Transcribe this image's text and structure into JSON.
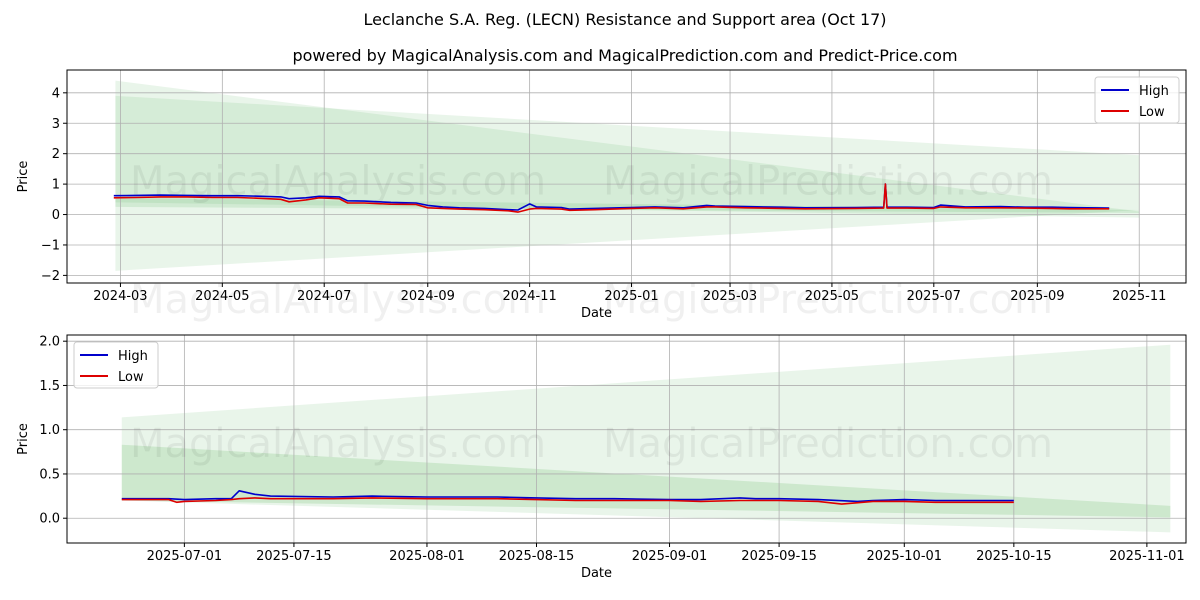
{
  "title": "Leclanche S.A. Reg. (LECN) Resistance and Support area (Oct 17)",
  "subtitle": "powered by MagicalAnalysis.com and MagicalPrediction.com and Predict-Price.com",
  "watermarks": [
    "MagicalAnalysis.com",
    "MagicalPrediction.com"
  ],
  "colors": {
    "high": "#0000cc",
    "low": "#dd0000",
    "band_fill": "#4caf50",
    "grid": "#b0b0b0"
  },
  "chart_data": [
    {
      "type": "line",
      "xlabel": "Date",
      "ylabel": "Price",
      "xlim": [
        "2024-01-29",
        "2025-11-29"
      ],
      "ylim": [
        -2.25,
        4.75
      ],
      "x_ticks": [
        "2024-03",
        "2024-05",
        "2024-07",
        "2024-09",
        "2024-11",
        "2025-01",
        "2025-03",
        "2025-05",
        "2025-07",
        "2025-09",
        "2025-11"
      ],
      "y_ticks": [
        -2,
        -1,
        0,
        1,
        2,
        3,
        4
      ],
      "y_tick_labels": [
        "−2",
        "−1",
        "0",
        "1",
        "2",
        "3",
        "4"
      ],
      "legend": {
        "position": "top-right",
        "entries": [
          "High",
          "Low"
        ]
      },
      "bands": [
        {
          "x": [
            "2024-02-27",
            "2025-11-01"
          ],
          "top": [
            4.4,
            0.1
          ],
          "bottom": [
            0.4,
            -0.1
          ],
          "opacity": 0.12
        },
        {
          "x": [
            "2024-02-27",
            "2025-11-01"
          ],
          "top": [
            3.9,
            1.95
          ],
          "bottom": [
            -1.85,
            0.15
          ],
          "opacity": 0.12
        },
        {
          "x": [
            "2024-02-27",
            "2025-11-01"
          ],
          "top": [
            0.55,
            0.15
          ],
          "bottom": [
            0.25,
            0.05
          ],
          "opacity": 0.15
        }
      ],
      "series": [
        {
          "name": "High",
          "x": [
            "2024-02-26",
            "2024-03-10",
            "2024-03-25",
            "2024-04-10",
            "2024-04-25",
            "2024-05-10",
            "2024-05-25",
            "2024-06-05",
            "2024-06-10",
            "2024-06-20",
            "2024-06-28",
            "2024-07-10",
            "2024-07-15",
            "2024-07-25",
            "2024-08-10",
            "2024-08-25",
            "2024-09-01",
            "2024-09-10",
            "2024-09-20",
            "2024-10-05",
            "2024-10-20",
            "2024-10-25",
            "2024-11-01",
            "2024-11-05",
            "2024-11-20",
            "2024-11-25",
            "2024-12-10",
            "2024-12-25",
            "2025-01-15",
            "2025-02-01",
            "2025-02-15",
            "2025-02-20",
            "2025-03-10",
            "2025-04-01",
            "2025-04-15",
            "2025-05-15",
            "2025-06-01",
            "2025-06-02",
            "2025-06-03",
            "2025-06-15",
            "2025-07-01",
            "2025-07-05",
            "2025-07-20",
            "2025-08-10",
            "2025-08-25",
            "2025-09-10",
            "2025-09-20",
            "2025-10-01",
            "2025-10-14"
          ],
          "values": [
            0.62,
            0.63,
            0.64,
            0.63,
            0.62,
            0.62,
            0.6,
            0.58,
            0.52,
            0.55,
            0.6,
            0.58,
            0.45,
            0.44,
            0.4,
            0.38,
            0.3,
            0.25,
            0.22,
            0.2,
            0.16,
            0.15,
            0.35,
            0.25,
            0.23,
            0.18,
            0.2,
            0.22,
            0.25,
            0.22,
            0.3,
            0.28,
            0.26,
            0.24,
            0.22,
            0.23,
            0.24,
            1.0,
            0.24,
            0.24,
            0.23,
            0.31,
            0.25,
            0.26,
            0.24,
            0.24,
            0.23,
            0.22,
            0.21
          ]
        },
        {
          "name": "Low",
          "x": [
            "2024-02-26",
            "2024-03-10",
            "2024-03-25",
            "2024-04-10",
            "2024-04-25",
            "2024-05-10",
            "2024-05-25",
            "2024-06-05",
            "2024-06-10",
            "2024-06-20",
            "2024-06-28",
            "2024-07-10",
            "2024-07-15",
            "2024-07-25",
            "2024-08-10",
            "2024-08-25",
            "2024-09-01",
            "2024-09-10",
            "2024-09-20",
            "2024-10-05",
            "2024-10-20",
            "2024-10-25",
            "2024-11-01",
            "2024-11-05",
            "2024-11-20",
            "2024-11-25",
            "2024-12-10",
            "2024-12-25",
            "2025-01-15",
            "2025-02-01",
            "2025-02-15",
            "2025-02-20",
            "2025-03-10",
            "2025-04-01",
            "2025-04-15",
            "2025-05-15",
            "2025-06-01",
            "2025-06-02",
            "2025-06-03",
            "2025-06-15",
            "2025-07-01",
            "2025-07-05",
            "2025-07-20",
            "2025-08-10",
            "2025-08-25",
            "2025-09-10",
            "2025-09-20",
            "2025-10-01",
            "2025-10-14"
          ],
          "values": [
            0.55,
            0.56,
            0.58,
            0.58,
            0.56,
            0.56,
            0.53,
            0.5,
            0.42,
            0.48,
            0.55,
            0.52,
            0.38,
            0.38,
            0.34,
            0.33,
            0.22,
            0.2,
            0.18,
            0.16,
            0.12,
            0.08,
            0.18,
            0.2,
            0.18,
            0.14,
            0.16,
            0.19,
            0.22,
            0.19,
            0.25,
            0.25,
            0.22,
            0.2,
            0.19,
            0.2,
            0.21,
            1.0,
            0.21,
            0.21,
            0.2,
            0.25,
            0.22,
            0.22,
            0.21,
            0.2,
            0.19,
            0.19,
            0.19
          ]
        }
      ]
    },
    {
      "type": "line",
      "xlabel": "Date",
      "ylabel": "Price",
      "xlim": [
        "2025-06-16",
        "2025-11-06"
      ],
      "ylim": [
        -0.28,
        2.07
      ],
      "x_ticks": [
        "2025-07-01",
        "2025-07-15",
        "2025-08-01",
        "2025-08-15",
        "2025-09-01",
        "2025-09-15",
        "2025-10-01",
        "2025-10-15",
        "2025-11-01"
      ],
      "y_ticks": [
        0.0,
        0.5,
        1.0,
        1.5,
        2.0
      ],
      "y_tick_labels": [
        "0.0",
        "0.5",
        "1.0",
        "1.5",
        "2.0"
      ],
      "legend": {
        "position": "top-left",
        "entries": [
          "High",
          "Low"
        ]
      },
      "bands": [
        {
          "x": [
            "2025-06-23",
            "2025-11-04"
          ],
          "top": [
            1.14,
            1.96
          ],
          "bottom": [
            0.2,
            -0.16
          ],
          "opacity": 0.12
        },
        {
          "x": [
            "2025-06-23",
            "2025-11-04"
          ],
          "top": [
            0.83,
            0.14
          ],
          "bottom": [
            0.2,
            0.01
          ],
          "opacity": 0.18
        }
      ],
      "series": [
        {
          "name": "High",
          "x": [
            "2025-06-23",
            "2025-06-29",
            "2025-07-01",
            "2025-07-05",
            "2025-07-07",
            "2025-07-08",
            "2025-07-10",
            "2025-07-12",
            "2025-07-20",
            "2025-07-25",
            "2025-08-01",
            "2025-08-10",
            "2025-08-15",
            "2025-08-20",
            "2025-08-25",
            "2025-09-01",
            "2025-09-05",
            "2025-09-10",
            "2025-09-12",
            "2025-09-15",
            "2025-09-20",
            "2025-09-25",
            "2025-09-27",
            "2025-10-01",
            "2025-10-05",
            "2025-10-10",
            "2025-10-15"
          ],
          "values": [
            0.22,
            0.22,
            0.21,
            0.22,
            0.22,
            0.31,
            0.27,
            0.25,
            0.24,
            0.25,
            0.24,
            0.24,
            0.23,
            0.22,
            0.22,
            0.21,
            0.21,
            0.23,
            0.22,
            0.22,
            0.21,
            0.19,
            0.2,
            0.21,
            0.2,
            0.2,
            0.2
          ]
        },
        {
          "name": "Low",
          "x": [
            "2025-06-23",
            "2025-06-29",
            "2025-06-30",
            "2025-07-01",
            "2025-07-05",
            "2025-07-07",
            "2025-07-08",
            "2025-07-10",
            "2025-07-12",
            "2025-07-20",
            "2025-07-25",
            "2025-08-01",
            "2025-08-10",
            "2025-08-15",
            "2025-08-20",
            "2025-08-25",
            "2025-09-01",
            "2025-09-05",
            "2025-09-10",
            "2025-09-12",
            "2025-09-15",
            "2025-09-20",
            "2025-09-23",
            "2025-09-27",
            "2025-10-01",
            "2025-10-05",
            "2025-10-10",
            "2025-10-15"
          ],
          "values": [
            0.21,
            0.21,
            0.18,
            0.19,
            0.2,
            0.21,
            0.22,
            0.23,
            0.22,
            0.22,
            0.23,
            0.22,
            0.22,
            0.21,
            0.2,
            0.2,
            0.2,
            0.19,
            0.2,
            0.2,
            0.2,
            0.19,
            0.16,
            0.19,
            0.19,
            0.18,
            0.18,
            0.18
          ]
        }
      ]
    }
  ]
}
